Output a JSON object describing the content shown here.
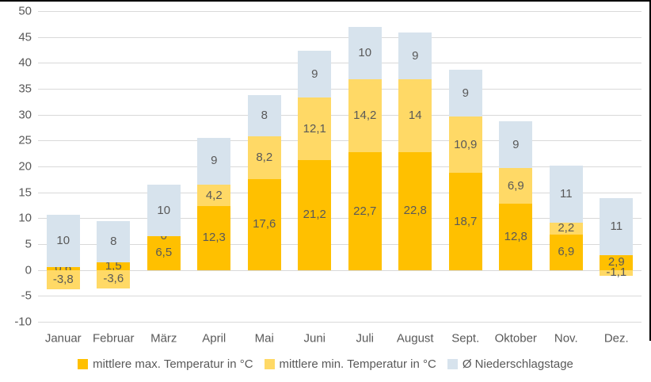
{
  "chart_data": {
    "type": "bar",
    "stacked": true,
    "title": "",
    "categories": [
      "Januar",
      "Februar",
      "März",
      "April",
      "Mai",
      "Juni",
      "Juli",
      "August",
      "Sept.",
      "Oktober",
      "Nov.",
      "Dez."
    ],
    "series": [
      {
        "name": "mittlere max. Temperatur in °C",
        "color": "#FFC000",
        "values": [
          0.6,
          1.5,
          6.5,
          12.3,
          17.6,
          21.2,
          22.7,
          22.8,
          18.7,
          12.8,
          6.9,
          2.9
        ]
      },
      {
        "name": "mittlere min. Temperatur in °C",
        "color": "#FFD966",
        "values": [
          -3.8,
          -3.6,
          0,
          4.2,
          8.2,
          12.1,
          14.2,
          14.0,
          10.9,
          6.9,
          2.2,
          -1.1
        ]
      },
      {
        "name": "Ø Niederschlagstage",
        "color": "#D7E3ED",
        "values": [
          10,
          8,
          10,
          9,
          8,
          9,
          10,
          9,
          9,
          9,
          11,
          11
        ]
      }
    ],
    "y_axis": {
      "min": -10,
      "max": 50,
      "step": 5,
      "ticks": [
        50,
        45,
        40,
        35,
        30,
        25,
        20,
        15,
        10,
        5,
        0,
        -5,
        -10
      ]
    },
    "grid": true,
    "legend_position": "bottom",
    "decimal_separator": ",",
    "colors": {
      "gridline": "#D9D9D9",
      "axis_text": "#595959",
      "data_label_text": "#595959",
      "border": "#000000",
      "background": "#FFFFFF"
    }
  }
}
